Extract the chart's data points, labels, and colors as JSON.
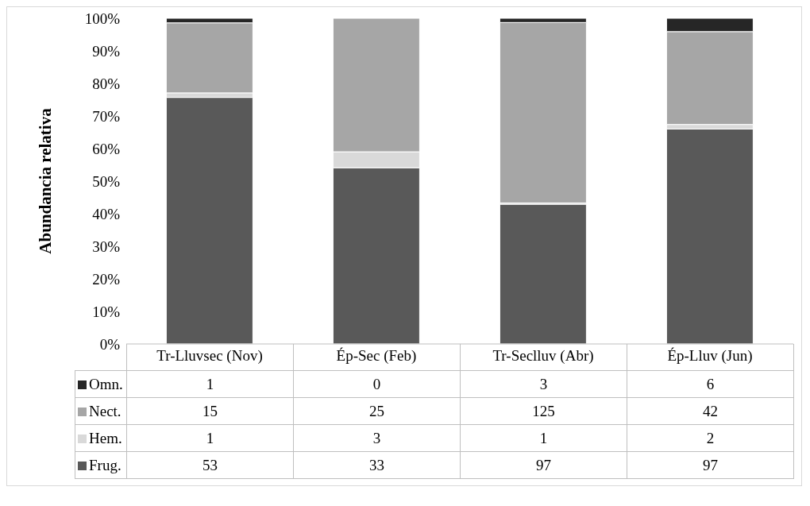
{
  "chart_data": {
    "type": "bar",
    "stacked": true,
    "ylabel": "Abundancia relativa",
    "categories": [
      "Tr-Lluvsec (Nov)",
      "Ép-Sec (Feb)",
      "Tr-Seclluv (Abr)",
      "Ép-Lluv (Jun)"
    ],
    "series": [
      {
        "name": "Frug.",
        "color": "#595959",
        "values": [
          75.7,
          54.1,
          42.9,
          66.0
        ]
      },
      {
        "name": "Hem.",
        "color": "#d9d9d9",
        "values": [
          1.4,
          4.9,
          0.4,
          1.4
        ]
      },
      {
        "name": "Nect.",
        "color": "#a6a6a6",
        "values": [
          21.5,
          41.0,
          55.4,
          28.5
        ]
      },
      {
        "name": "Omn.",
        "color": "#262626",
        "values": [
          1.4,
          0,
          1.3,
          4.1
        ]
      }
    ],
    "annotations": [
      "1",
      "0",
      "3",
      "6",
      "15",
      "25",
      "125",
      "42",
      "1",
      "3",
      "1",
      "2",
      "53",
      "33",
      "97",
      "97"
    ],
    "ylim": [
      0,
      100
    ],
    "yticks": [
      {
        "value": 0,
        "label": "0%"
      },
      {
        "value": 10,
        "label": "10%"
      },
      {
        "value": 20,
        "label": "20%"
      },
      {
        "value": 30,
        "label": "30%"
      },
      {
        "value": 40,
        "label": "40%"
      },
      {
        "value": 50,
        "label": "50%"
      },
      {
        "value": 60,
        "label": "60%"
      },
      {
        "value": 70,
        "label": "70%"
      },
      {
        "value": 80,
        "label": "80%"
      },
      {
        "value": 90,
        "label": "90%"
      },
      {
        "value": 100,
        "label": "100%"
      }
    ],
    "grid": false,
    "legend": "bottom"
  }
}
